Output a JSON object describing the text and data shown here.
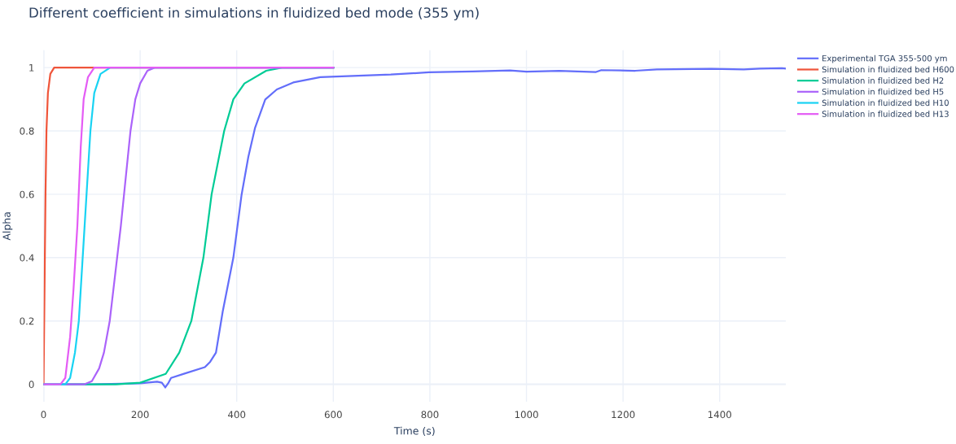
{
  "chart_data": {
    "type": "line",
    "title": "Different coefficient in simulations in fluidized bed mode (355 ym)",
    "xlabel": "Time (s)",
    "ylabel": "Alpha",
    "xlim": [
      0,
      1537
    ],
    "ylim": [
      -0.055,
      1.055
    ],
    "xticks": [
      0,
      200,
      400,
      600,
      800,
      1000,
      1200,
      1400
    ],
    "yticks": [
      0,
      0.2,
      0.4,
      0.6,
      0.8,
      1
    ],
    "grid": true,
    "legend": "top right",
    "marker": "none",
    "line_style": "solid",
    "series": [
      {
        "name": "Experimental TGA 355-500 ym",
        "color": "#636efa",
        "x": [
          0,
          100,
          200,
          235,
          245,
          252,
          258,
          264,
          292,
          334,
          345,
          357,
          371,
          393,
          410,
          424,
          438,
          459,
          483,
          517,
          573,
          719,
          798,
          888,
          966,
          1000,
          1068,
          1144,
          1155,
          1225,
          1270,
          1382,
          1450,
          1484,
          1529,
          1537
        ],
        "values": [
          0,
          0,
          0.003,
          0.008,
          0.005,
          -0.01,
          0.003,
          0.02,
          0.034,
          0.054,
          0.071,
          0.1,
          0.23,
          0.4,
          0.598,
          0.718,
          0.81,
          0.899,
          0.931,
          0.953,
          0.97,
          0.978,
          0.985,
          0.988,
          0.991,
          0.987,
          0.99,
          0.986,
          0.992,
          0.99,
          0.994,
          0.996,
          0.994,
          0.997,
          0.998,
          0.997
        ]
      },
      {
        "name": "Simulation in fluidized bed H600",
        "color": "#ef553b",
        "x": [
          0,
          2,
          4,
          6,
          9,
          14,
          22,
          600
        ],
        "values": [
          0,
          0.3,
          0.6,
          0.8,
          0.92,
          0.98,
          1,
          1
        ]
      },
      {
        "name": "Simulation in fluidized bed H2",
        "color": "#00cc96",
        "x": [
          0,
          150,
          200,
          253,
          281,
          306,
          331,
          348,
          374,
          393,
          416,
          461,
          494,
          600
        ],
        "values": [
          0,
          0,
          0.005,
          0.033,
          0.1,
          0.2,
          0.4,
          0.6,
          0.8,
          0.9,
          0.95,
          0.99,
          1,
          1
        ]
      },
      {
        "name": "Simulation in fluidized bed H5",
        "color": "#ab63fa",
        "x": [
          0,
          85,
          100,
          115,
          125,
          137,
          160,
          180,
          190,
          200,
          215,
          230,
          600
        ],
        "values": [
          0,
          0,
          0.01,
          0.05,
          0.1,
          0.2,
          0.5,
          0.8,
          0.9,
          0.95,
          0.99,
          1,
          1
        ]
      },
      {
        "name": "Simulation in fluidized bed H10",
        "color": "#19d3f3",
        "x": [
          0,
          45,
          55,
          65,
          73,
          85,
          97,
          105,
          118,
          138,
          600
        ],
        "values": [
          0,
          0,
          0.02,
          0.1,
          0.2,
          0.5,
          0.8,
          0.92,
          0.98,
          1,
          1
        ]
      },
      {
        "name": "Simulation in fluidized bed H13",
        "color": "#e45cf5",
        "x": [
          0,
          35,
          45,
          55,
          62,
          70,
          77,
          83,
          92,
          105,
          600
        ],
        "values": [
          0,
          0,
          0.02,
          0.15,
          0.3,
          0.5,
          0.75,
          0.9,
          0.97,
          1,
          1
        ]
      }
    ]
  }
}
